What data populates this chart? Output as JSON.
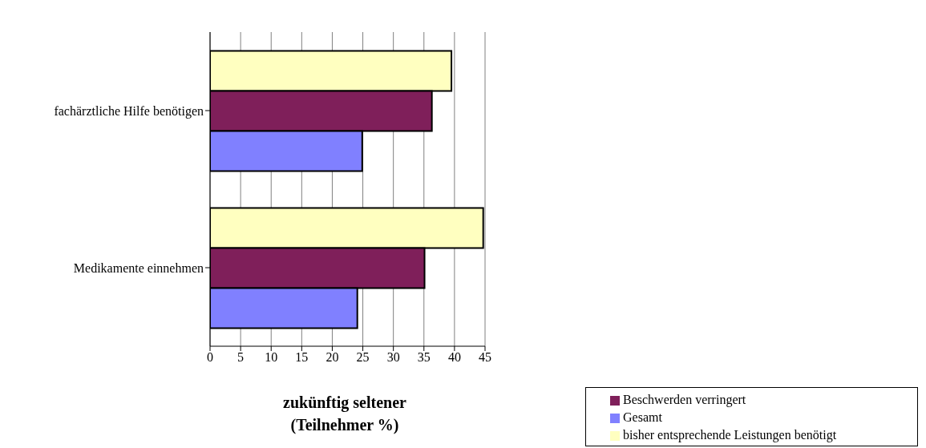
{
  "chart_data": {
    "type": "bar",
    "orientation": "horizontal",
    "categories": [
      "fachärztliche Hilfe benötigen",
      "Medikamente einnehmen"
    ],
    "series": [
      {
        "name": "bisher entsprechende Leistungen benötigt",
        "color": "#ffffc0",
        "values": [
          39.5,
          44.7
        ]
      },
      {
        "name": "Beschwerden verringert",
        "color": "#7f1f5a",
        "values": [
          36.3,
          35.1
        ]
      },
      {
        "name": "Gesamt",
        "color": "#8080ff",
        "values": [
          24.9,
          24.1
        ]
      }
    ],
    "xlabel": "zukünftig seltener (Teilnehmer %)",
    "xlim": [
      0,
      45
    ],
    "xticks": [
      0,
      5,
      10,
      15,
      20,
      25,
      30,
      35,
      40,
      45
    ],
    "grid": "x",
    "legend": "bottom right"
  }
}
